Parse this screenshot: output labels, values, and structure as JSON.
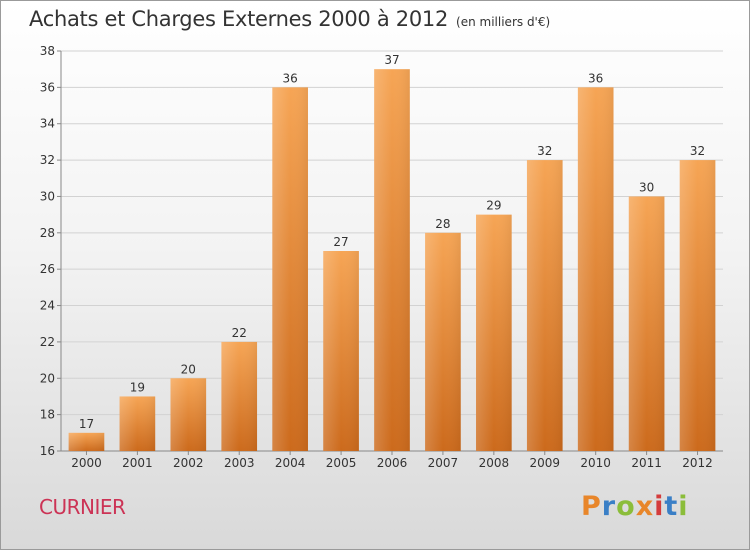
{
  "header": {
    "title": "Achats et Charges Externes 2000 à 2012",
    "subtitle": "(en milliers d'€)"
  },
  "footer": {
    "commune": "CURNIER",
    "logo": "Proxiti",
    "logo_colors": [
      "#e8862a",
      "#3a7fc6",
      "#8bbd3a",
      "#e8862a",
      "#d43c3c",
      "#3a7fc6",
      "#8bbd3a"
    ]
  },
  "colors": {
    "bar_top": "#f6a555",
    "bar_bottom": "#cc6a1c",
    "grid": "#d2d2d2",
    "axis": "#888888",
    "commune": "#cc3355"
  },
  "chart_data": {
    "type": "bar",
    "title": "Achats et Charges Externes 2000 à 2012",
    "subtitle": "(en milliers d'€)",
    "categories": [
      "2000",
      "2001",
      "2002",
      "2003",
      "2004",
      "2005",
      "2006",
      "2007",
      "2008",
      "2009",
      "2010",
      "2011",
      "2012"
    ],
    "values": [
      17,
      19,
      20,
      22,
      36,
      27,
      37,
      28,
      29,
      32,
      36,
      30,
      32
    ],
    "ylim": [
      16,
      38
    ],
    "yticks": [
      16,
      18,
      20,
      22,
      24,
      26,
      28,
      30,
      32,
      34,
      36,
      38
    ],
    "grid": true,
    "data_labels": true
  }
}
